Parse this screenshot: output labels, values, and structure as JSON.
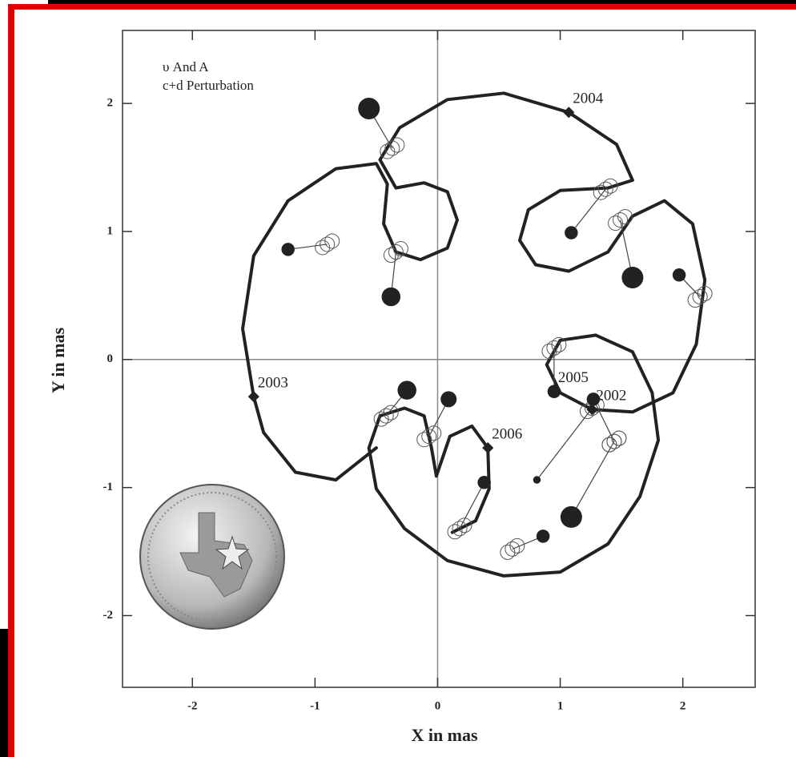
{
  "chart_data": {
    "type": "scatter",
    "title": [
      "υ And A",
      "c+d Perturbation"
    ],
    "x_label": "X in mas",
    "y_label": "Y in mas",
    "xlim": [
      -2.57,
      2.59
    ],
    "ylim": [
      -2.56,
      2.57
    ],
    "xticks": [
      -2,
      -1,
      0,
      1,
      2
    ],
    "yticks": [
      -2,
      -1,
      0,
      1,
      2
    ],
    "zero_lines": true,
    "color": "#222",
    "measured": {
      "x": [
        -0.56,
        1.09,
        1.59,
        1.97,
        -1.22,
        -0.38,
        -0.25,
        0.09,
        0.95,
        1.27,
        0.38,
        0.81,
        1.09,
        0.86
      ],
      "y": [
        1.96,
        0.99,
        0.64,
        0.66,
        0.86,
        0.49,
        -0.24,
        -0.31,
        -0.25,
        -0.31,
        -0.96,
        -0.94,
        -1.23,
        -1.38
      ],
      "sizes": [
        3,
        1.5,
        3,
        1.5,
        1.5,
        2.5,
        2.5,
        2,
        1.5,
        1.5,
        1.5,
        0.5,
        3,
        1.5
      ]
    },
    "predicted": {
      "x": [
        -0.37,
        1.37,
        1.49,
        2.14,
        -0.9,
        -0.34,
        -0.42,
        -0.07,
        0.95,
        1.44,
        0.18,
        1.26,
        1.44,
        0.61
      ],
      "y": [
        1.65,
        1.33,
        1.09,
        0.49,
        0.9,
        0.84,
        -0.44,
        -0.6,
        0.09,
        -0.64,
        -1.32,
        -0.38,
        -0.64,
        -1.48
      ]
    },
    "curve": {
      "x": [
        -0.5,
        -0.83,
        -1.16,
        -1.42,
        -1.5,
        -1.59,
        -1.5,
        -1.22,
        -0.83,
        -0.5,
        -0.41,
        -0.44,
        -0.34,
        -0.14,
        0.08,
        0.16,
        0.08,
        -0.11,
        -0.34,
        -0.47,
        -0.31,
        0.08,
        0.54,
        1.07,
        1.46,
        1.59,
        1.39,
        1.0,
        0.74,
        0.67,
        0.8,
        1.07,
        1.39,
        1.59,
        1.85,
        2.08,
        2.18,
        2.11,
        1.92,
        1.59,
        1.26,
        1.0,
        0.89,
        1.0,
        1.29,
        1.59,
        1.75,
        1.8,
        1.65,
        1.39,
        1.0,
        0.54,
        0.08,
        -0.27,
        -0.5,
        -0.56,
        -0.47,
        -0.27,
        -0.11,
        -0.05,
        -0.01,
        0.1,
        0.28,
        0.41,
        0.42,
        0.31,
        0.12
      ],
      "y": [
        -0.69,
        -0.94,
        -0.88,
        -0.57,
        -0.29,
        0.24,
        0.81,
        1.24,
        1.49,
        1.53,
        1.37,
        1.06,
        0.84,
        0.78,
        0.87,
        1.09,
        1.31,
        1.38,
        1.34,
        1.56,
        1.81,
        2.03,
        2.08,
        1.93,
        1.68,
        1.4,
        1.34,
        1.32,
        1.17,
        0.93,
        0.74,
        0.69,
        0.84,
        1.12,
        1.24,
        1.06,
        0.62,
        0.12,
        -0.26,
        -0.41,
        -0.39,
        -0.26,
        -0.04,
        0.15,
        0.19,
        0.06,
        -0.26,
        -0.63,
        -1.07,
        -1.44,
        -1.66,
        -1.69,
        -1.57,
        -1.32,
        -1.01,
        -0.69,
        -0.44,
        -0.38,
        -0.44,
        -0.69,
        -0.91,
        -0.6,
        -0.52,
        -0.69,
        -1.01,
        -1.26,
        -1.35
      ]
    },
    "annotations": [
      {
        "text": "2004",
        "x": 1.07,
        "y": 1.93
      },
      {
        "text": "2003",
        "x": -1.5,
        "y": -0.29
      },
      {
        "text": "2005",
        "x": 0.95,
        "y": -0.25
      },
      {
        "text": "2002",
        "x": 1.26,
        "y": -0.39
      },
      {
        "text": "2006",
        "x": 0.41,
        "y": -0.69
      }
    ]
  }
}
